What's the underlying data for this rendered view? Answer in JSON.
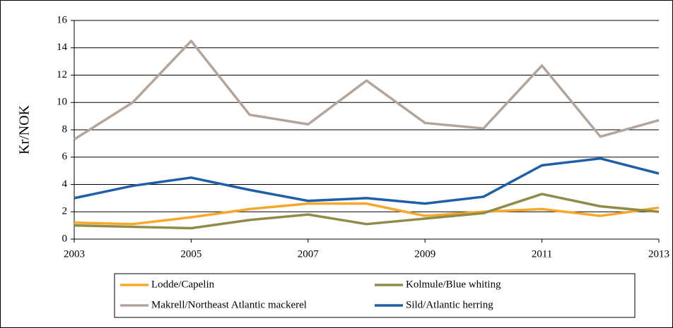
{
  "chart_data": {
    "type": "line",
    "y_label": "Kr/NOK",
    "x": [
      2003,
      2004,
      2005,
      2006,
      2007,
      2008,
      2009,
      2010,
      2011,
      2012,
      2013
    ],
    "xlim": [
      2003,
      2013
    ],
    "xticks": [
      2003,
      2005,
      2007,
      2009,
      2011,
      2013
    ],
    "ylim": [
      0,
      16
    ],
    "yticks": [
      0,
      2,
      4,
      6,
      8,
      10,
      12,
      14,
      16
    ],
    "grid": true,
    "legend": "bottom",
    "series": [
      {
        "name": "Lodde/Capelin",
        "color": "#f5a82a",
        "values": [
          1.2,
          1.1,
          1.6,
          2.2,
          2.6,
          2.6,
          1.7,
          2.0,
          2.2,
          1.7,
          2.3
        ]
      },
      {
        "name": "Kolmule/Blue whiting",
        "color": "#8e8c48",
        "values": [
          1.0,
          0.9,
          0.8,
          1.4,
          1.8,
          1.1,
          1.5,
          1.9,
          3.3,
          2.4,
          2.0
        ]
      },
      {
        "name": "Makrell/Northeast Atlantic mackerel",
        "color": "#b3a59b",
        "values": [
          7.3,
          10.0,
          14.5,
          9.1,
          8.4,
          11.6,
          8.5,
          8.1,
          12.7,
          7.5,
          8.7
        ]
      },
      {
        "name": "Sild/Atlantic herring",
        "color": "#1f5fa8",
        "values": [
          3.0,
          3.9,
          4.5,
          3.6,
          2.8,
          3.0,
          2.6,
          3.1,
          5.4,
          5.9,
          4.8
        ]
      }
    ]
  }
}
